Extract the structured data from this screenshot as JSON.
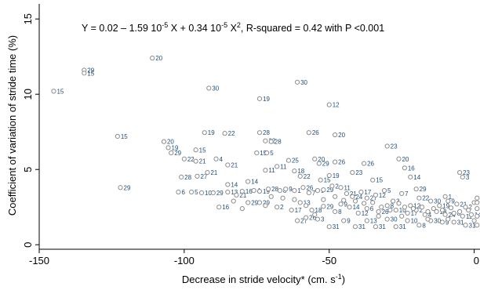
{
  "chart_data": {
    "type": "scatter",
    "equation_parts": {
      "p1": "Y = 0.02 – 1.59 10",
      "e1": "-5",
      "p2": " X + 0.34 10",
      "e2": "-5",
      "p3": " X",
      "e3": "2",
      "p4": ", R-squared = 0.42 with P <0.001"
    },
    "xlabel_parts": {
      "main": "Decrease in stride velocity* (cm. s",
      "sup": "-1",
      "end": ")"
    },
    "ylabel": "Coefficient of variation of stride time (%)",
    "xlim": [
      -150,
      2
    ],
    "ylim": [
      -0.3,
      16
    ],
    "x_ticks": [
      -150,
      -100,
      -50,
      0
    ],
    "x_tick_labels": [
      "-150",
      "-100",
      "-50",
      "0"
    ],
    "y_ticks": [
      0,
      5,
      10,
      15
    ],
    "y_tick_labels": [
      "0",
      "5",
      "10",
      "15"
    ],
    "fit": {
      "a": 0.02,
      "b": -1.59,
      "c": 0.34,
      "scale_pct": 1000,
      "x_range": [
        -145,
        2
      ]
    },
    "points": [
      [
        -145,
        10.2,
        "15"
      ],
      [
        -134.5,
        11.6,
        "29"
      ],
      [
        -134.5,
        11.4,
        "15"
      ],
      [
        -111,
        12.4,
        "20"
      ],
      [
        -91.5,
        10.4,
        "30"
      ],
      [
        -61,
        10.8,
        "30"
      ],
      [
        -74,
        9.7,
        "19"
      ],
      [
        -50,
        9.3,
        "12"
      ],
      [
        -123,
        7.2,
        "15"
      ],
      [
        -107,
        6.85,
        "20"
      ],
      [
        -105.5,
        6.45,
        "19"
      ],
      [
        -104.5,
        6.1,
        "29"
      ],
      [
        -93,
        7.45,
        "19"
      ],
      [
        -86,
        7.4,
        "22"
      ],
      [
        -74,
        7.45,
        "28"
      ],
      [
        -72,
        6.9,
        "22"
      ],
      [
        -70,
        6.85,
        "28"
      ],
      [
        -57,
        7.45,
        "26"
      ],
      [
        -48,
        7.3,
        "20"
      ],
      [
        -96,
        6.3,
        "15"
      ],
      [
        -75,
        6.1,
        "15"
      ],
      [
        -71.5,
        6.1,
        "5"
      ],
      [
        -64,
        5.6,
        "25"
      ],
      [
        -55,
        5.7,
        "20"
      ],
      [
        -53.5,
        5.4,
        "29"
      ],
      [
        -48,
        5.5,
        "26"
      ],
      [
        -30,
        6.55,
        "23"
      ],
      [
        -26,
        5.7,
        "20"
      ],
      [
        -24,
        5.1,
        "16"
      ],
      [
        -38,
        5.4,
        "26"
      ],
      [
        -5,
        4.8,
        "23"
      ],
      [
        -100,
        5.7,
        "22"
      ],
      [
        -89,
        5.7,
        "4"
      ],
      [
        -85,
        5.3,
        "21"
      ],
      [
        -96,
        5.55,
        "21"
      ],
      [
        -101,
        4.5,
        "28"
      ],
      [
        -95.5,
        4.55,
        "27"
      ],
      [
        -92,
        4.8,
        "21"
      ],
      [
        -72,
        4.95,
        "11"
      ],
      [
        -68,
        5.2,
        "11"
      ],
      [
        -62,
        4.9,
        "18"
      ],
      [
        -60,
        4.55,
        "22"
      ],
      [
        -53,
        4.3,
        "15"
      ],
      [
        -50,
        4.6,
        "19"
      ],
      [
        -42,
        4.8,
        "23"
      ],
      [
        -35,
        4.3,
        "15"
      ],
      [
        -22,
        4.5,
        "14"
      ],
      [
        -20,
        3.7,
        "29"
      ],
      [
        -10,
        3.2,
        "1"
      ],
      [
        -4,
        4.5,
        "3"
      ],
      [
        -122,
        3.8,
        "29"
      ],
      [
        -102,
        3.5,
        "6"
      ],
      [
        -97.5,
        3.5,
        "5"
      ],
      [
        -94,
        3.45,
        "10"
      ],
      [
        -90,
        3.45,
        "29"
      ],
      [
        -85,
        4.0,
        "14"
      ],
      [
        -85,
        3.5,
        "13"
      ],
      [
        -82,
        3.3,
        "21"
      ],
      [
        -80,
        3.55,
        "16"
      ],
      [
        -78,
        4.2,
        "14"
      ],
      [
        -76,
        3.6,
        "4"
      ],
      [
        -74,
        3.55,
        "19"
      ],
      [
        -71,
        3.7,
        "28"
      ],
      [
        -67,
        3.6,
        "8"
      ],
      [
        -65,
        3.7,
        "9"
      ],
      [
        -62,
        3.6,
        "1"
      ],
      [
        -59,
        3.8,
        "26"
      ],
      [
        -57,
        3.45,
        "7"
      ],
      [
        -54,
        3.6,
        "9"
      ],
      [
        -52,
        3.65,
        "29"
      ],
      [
        -49,
        3.9,
        "2"
      ],
      [
        -46,
        3.8,
        "11"
      ],
      [
        -44,
        3.4,
        "21"
      ],
      [
        -42,
        3.2,
        "24"
      ],
      [
        -39,
        3.5,
        "17"
      ],
      [
        -37,
        3.1,
        "27"
      ],
      [
        -34,
        3.3,
        "12"
      ],
      [
        -31,
        3.6,
        "5"
      ],
      [
        -28,
        2.9,
        "3"
      ],
      [
        -25,
        3.4,
        "7"
      ],
      [
        -22,
        2.6,
        "12"
      ],
      [
        -19,
        3.1,
        "22"
      ],
      [
        -15,
        2.9,
        "30"
      ],
      [
        -12,
        2.6,
        "19"
      ],
      [
        -9,
        2.9,
        "9"
      ],
      [
        -6,
        2.7,
        "21"
      ],
      [
        -3,
        2.5,
        "2"
      ],
      [
        0,
        2.8,
        "6"
      ],
      [
        -88,
        2.5,
        "16"
      ],
      [
        -78,
        2.8,
        "29"
      ],
      [
        -74,
        2.8,
        "29"
      ],
      [
        -68,
        2.5,
        "2"
      ],
      [
        -63,
        2.3,
        "17"
      ],
      [
        -60,
        2.8,
        "13"
      ],
      [
        -56,
        2.3,
        "18"
      ],
      [
        -52,
        2.55,
        "29"
      ],
      [
        -48,
        2.2,
        "8"
      ],
      [
        -46,
        2.7,
        "9"
      ],
      [
        -43,
        2.5,
        "14"
      ],
      [
        -40,
        2.1,
        "12"
      ],
      [
        -37,
        2.4,
        "6"
      ],
      [
        -33,
        2.2,
        "26"
      ],
      [
        -30,
        2.6,
        "8"
      ],
      [
        -27,
        2.3,
        "10"
      ],
      [
        -23,
        2.1,
        "17"
      ],
      [
        -20,
        2.3,
        "2"
      ],
      [
        -17,
        2.0,
        "4"
      ],
      [
        -13,
        2.2,
        "18"
      ],
      [
        -10,
        2.0,
        "24"
      ],
      [
        -7,
        2.1,
        "8"
      ],
      [
        -4,
        1.9,
        "11"
      ],
      [
        -1,
        2.0,
        "14"
      ],
      [
        -61,
        1.6,
        "27"
      ],
      [
        -58,
        1.8,
        "26"
      ],
      [
        -54,
        1.7,
        "3"
      ],
      [
        -50,
        1.2,
        "31"
      ],
      [
        -45,
        1.6,
        "9"
      ],
      [
        -41,
        1.2,
        "31"
      ],
      [
        -37,
        1.6,
        "13"
      ],
      [
        -34,
        1.2,
        "31"
      ],
      [
        -30,
        1.7,
        "30"
      ],
      [
        -27,
        1.2,
        "31"
      ],
      [
        -23,
        1.6,
        "10"
      ],
      [
        -19,
        1.3,
        "8"
      ],
      [
        -15,
        1.6,
        "30"
      ],
      [
        -11,
        1.5,
        "9"
      ],
      [
        -7,
        1.5,
        "31"
      ],
      [
        -3,
        1.3,
        "31"
      ],
      [
        0,
        1.6,
        "29"
      ],
      [
        -52,
        3.0,
        ""
      ],
      [
        -48,
        3.2,
        ""
      ],
      [
        -45,
        2.95,
        ""
      ],
      [
        -41,
        2.9,
        ""
      ],
      [
        -38,
        2.75,
        ""
      ],
      [
        -35,
        2.8,
        ""
      ],
      [
        -32,
        2.5,
        ""
      ],
      [
        -29,
        2.3,
        ""
      ],
      [
        -26,
        2.75,
        ""
      ],
      [
        -24,
        2.5,
        ""
      ],
      [
        -21,
        2.4,
        ""
      ],
      [
        -18,
        2.5,
        ""
      ],
      [
        -16,
        2.2,
        ""
      ],
      [
        -14,
        2.4,
        ""
      ],
      [
        -11,
        2.3,
        ""
      ],
      [
        -8,
        2.45,
        ""
      ],
      [
        -5,
        2.2,
        ""
      ],
      [
        -2,
        2.3,
        ""
      ],
      [
        1,
        2.4,
        ""
      ],
      [
        1,
        1.9,
        ""
      ],
      [
        1,
        2.8,
        ""
      ],
      [
        1,
        3.1,
        ""
      ],
      [
        1,
        1.3,
        ""
      ],
      [
        -55,
        2.0,
        ""
      ],
      [
        -58,
        2.6,
        ""
      ],
      [
        -62,
        3.0,
        ""
      ],
      [
        -66,
        3.1,
        ""
      ],
      [
        -70,
        3.2,
        ""
      ],
      [
        -72,
        2.6,
        ""
      ],
      [
        -80,
        2.4,
        ""
      ],
      [
        -83,
        2.9,
        ""
      ],
      [
        -33,
        1.9,
        ""
      ],
      [
        -25,
        1.9,
        ""
      ],
      [
        -16,
        1.7,
        ""
      ],
      [
        -9,
        1.7,
        ""
      ]
    ]
  }
}
